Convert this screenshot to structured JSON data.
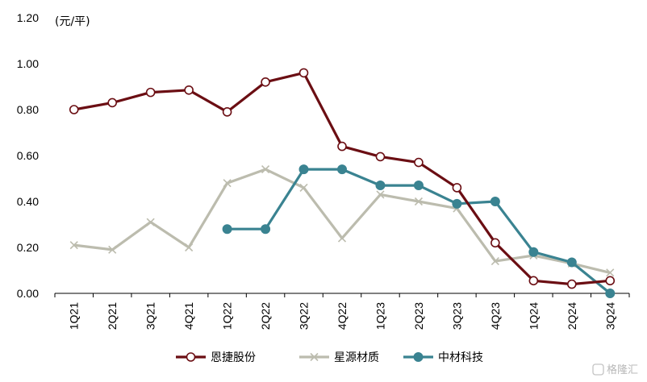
{
  "chart_data": {
    "type": "line",
    "unit_label": "(元/平)",
    "categories": [
      "1Q21",
      "2Q21",
      "3Q21",
      "4Q21",
      "1Q22",
      "2Q22",
      "3Q22",
      "4Q22",
      "1Q23",
      "2Q23",
      "3Q23",
      "4Q23",
      "1Q24",
      "2Q24",
      "3Q24"
    ],
    "ylim": [
      0,
      1.2
    ],
    "yticks": [
      "0.00",
      "0.20",
      "0.40",
      "0.60",
      "0.80",
      "1.00",
      "1.20"
    ],
    "grid": false,
    "legend_position": "bottom",
    "series": [
      {
        "name": "恩捷股份",
        "color": "#6b0e13",
        "marker": "circle-open",
        "values": [
          0.8,
          0.83,
          0.875,
          0.885,
          0.79,
          0.92,
          0.96,
          0.64,
          0.595,
          0.57,
          0.46,
          0.22,
          0.055,
          0.04,
          0.055
        ]
      },
      {
        "name": "星源材质",
        "color": "#bcbcae",
        "marker": "x",
        "values": [
          0.21,
          0.19,
          0.31,
          0.2,
          0.48,
          0.54,
          0.46,
          0.24,
          0.43,
          0.4,
          0.37,
          0.14,
          0.165,
          0.13,
          0.09
        ]
      },
      {
        "name": "中材科技",
        "color": "#3a8391",
        "marker": "circle-filled",
        "values": [
          null,
          null,
          null,
          null,
          0.28,
          0.28,
          0.54,
          0.54,
          0.47,
          0.47,
          0.39,
          0.4,
          0.18,
          0.135,
          0.0
        ]
      }
    ]
  },
  "watermark": {
    "text": "格隆汇"
  }
}
